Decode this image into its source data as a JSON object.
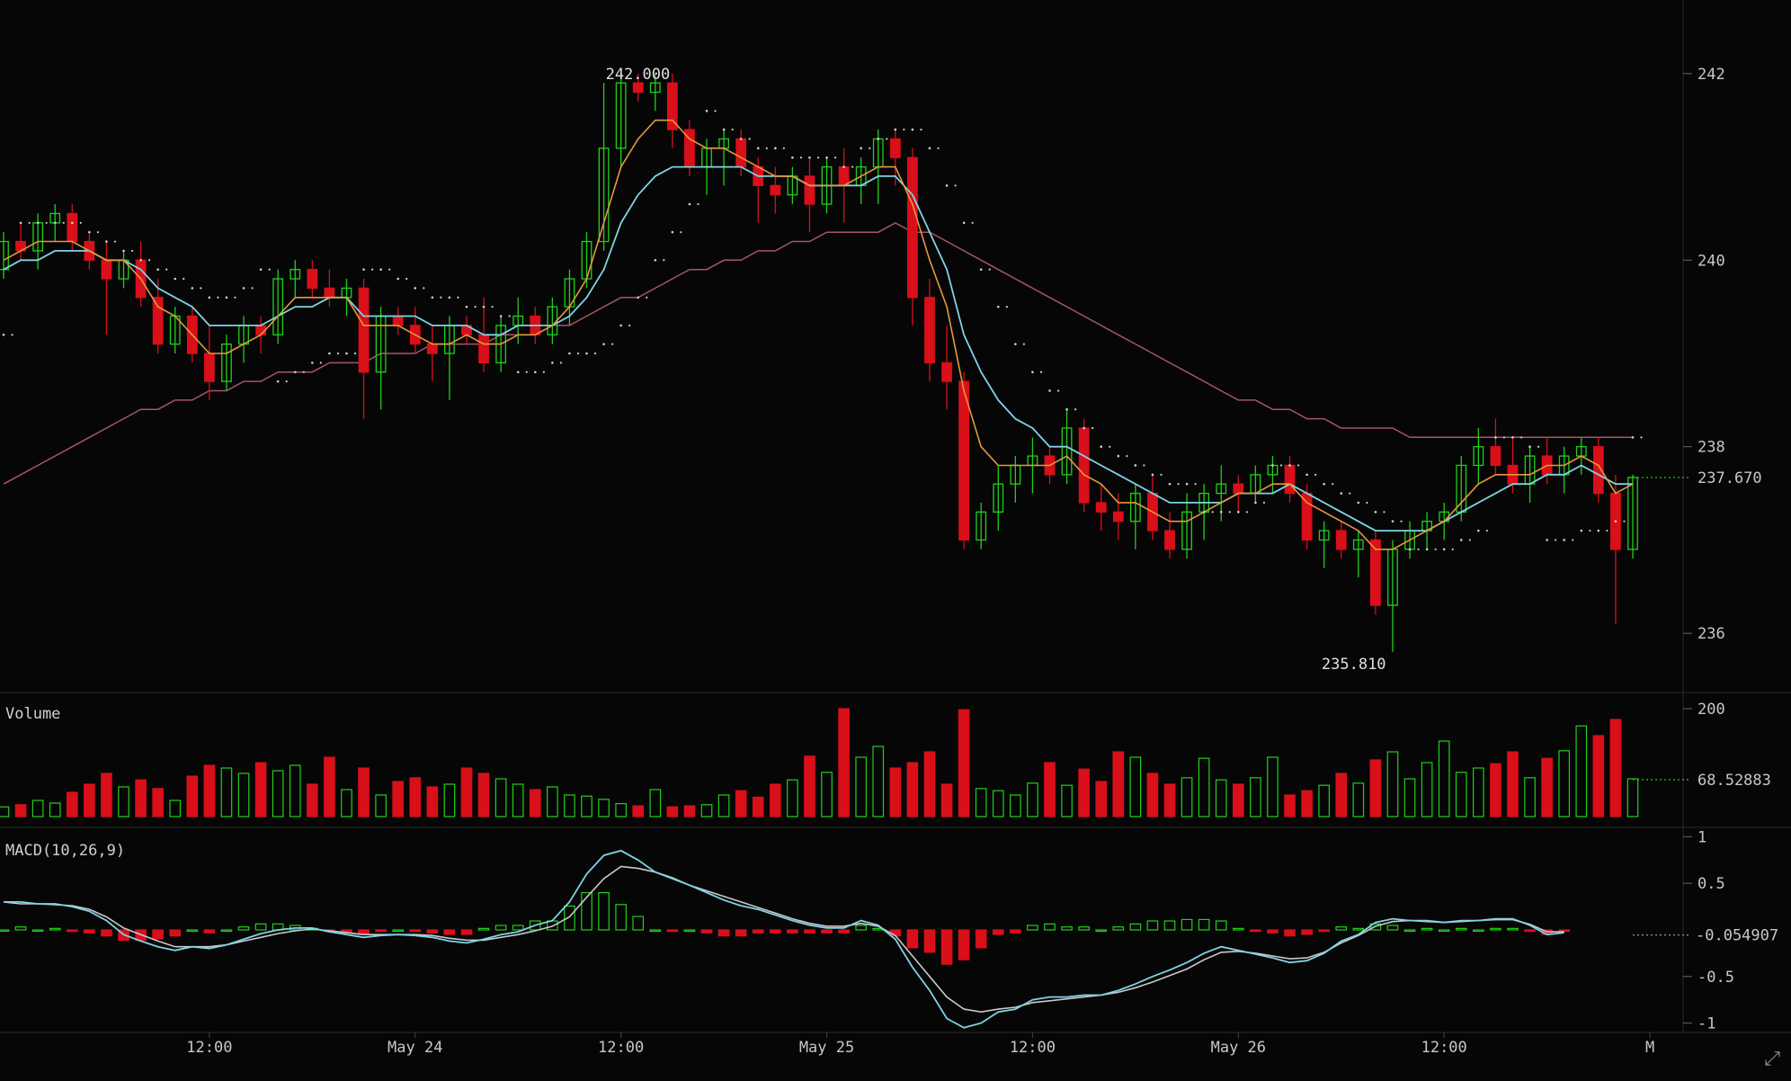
{
  "chart_data": {
    "type": "candlestick",
    "colors": {
      "up": "#1fd119",
      "down": "#d90f19",
      "ema_fast": "#e9973c",
      "ema_slow": "#7fd3e6",
      "ma_long": "#a8546a",
      "sar": "#cfcfcf",
      "macd_line": "#7fd3e6",
      "signal_line": "#c9c9c9",
      "axis_text": "#c8c8c8",
      "grid": "#1a1a1a"
    },
    "x_axis": {
      "labels": [
        "12:00",
        "May 24",
        "12:00",
        "May 25",
        "12:00",
        "May 26",
        "12:00",
        "M"
      ],
      "positions": [
        12,
        24,
        36,
        48,
        60,
        72,
        84,
        96
      ]
    },
    "price": {
      "ylim": [
        235.5,
        242.5
      ],
      "ticks": [
        242,
        240,
        238,
        236
      ],
      "last_label": "237.670",
      "high_label": "242.000",
      "low_label": "235.810",
      "candles": [
        [
          239.9,
          240.3,
          239.8,
          240.2
        ],
        [
          240.2,
          240.4,
          240.0,
          240.1
        ],
        [
          240.1,
          240.5,
          239.9,
          240.4
        ],
        [
          240.4,
          240.6,
          240.2,
          240.5
        ],
        [
          240.5,
          240.6,
          240.1,
          240.2
        ],
        [
          240.2,
          240.3,
          239.9,
          240.0
        ],
        [
          240.0,
          240.2,
          239.2,
          239.8
        ],
        [
          239.8,
          240.1,
          239.7,
          240.0
        ],
        [
          240.0,
          240.2,
          239.5,
          239.6
        ],
        [
          239.6,
          239.8,
          239.0,
          239.1
        ],
        [
          239.1,
          239.5,
          239.0,
          239.4
        ],
        [
          239.4,
          239.5,
          238.9,
          239.0
        ],
        [
          239.0,
          239.3,
          238.5,
          238.7
        ],
        [
          238.7,
          239.2,
          238.6,
          239.1
        ],
        [
          239.1,
          239.4,
          238.9,
          239.3
        ],
        [
          239.3,
          239.4,
          239.0,
          239.2
        ],
        [
          239.2,
          239.9,
          239.1,
          239.8
        ],
        [
          239.8,
          240.0,
          239.6,
          239.9
        ],
        [
          239.9,
          240.0,
          239.6,
          239.7
        ],
        [
          239.7,
          239.9,
          239.5,
          239.6
        ],
        [
          239.6,
          239.8,
          239.4,
          239.7
        ],
        [
          239.7,
          239.8,
          238.3,
          238.8
        ],
        [
          238.8,
          239.5,
          238.4,
          239.4
        ],
        [
          239.4,
          239.5,
          239.2,
          239.3
        ],
        [
          239.3,
          239.5,
          239.0,
          239.1
        ],
        [
          239.1,
          239.3,
          238.7,
          239.0
        ],
        [
          239.0,
          239.4,
          238.5,
          239.3
        ],
        [
          239.3,
          239.4,
          239.1,
          239.2
        ],
        [
          239.2,
          239.6,
          238.8,
          238.9
        ],
        [
          238.9,
          239.4,
          238.8,
          239.3
        ],
        [
          239.3,
          239.6,
          239.1,
          239.4
        ],
        [
          239.4,
          239.5,
          239.1,
          239.2
        ],
        [
          239.2,
          239.6,
          239.1,
          239.5
        ],
        [
          239.5,
          239.9,
          239.3,
          239.8
        ],
        [
          239.8,
          240.3,
          239.7,
          240.2
        ],
        [
          240.2,
          241.9,
          240.1,
          241.2
        ],
        [
          241.2,
          242.0,
          241.0,
          241.9
        ],
        [
          241.9,
          242.0,
          241.7,
          241.8
        ],
        [
          241.8,
          242.0,
          241.6,
          241.9
        ],
        [
          241.9,
          242.0,
          241.2,
          241.4
        ],
        [
          241.4,
          241.5,
          240.9,
          241.0
        ],
        [
          241.0,
          241.3,
          240.7,
          241.2
        ],
        [
          241.2,
          241.4,
          240.8,
          241.3
        ],
        [
          241.3,
          241.4,
          240.9,
          241.0
        ],
        [
          241.0,
          241.1,
          240.4,
          240.8
        ],
        [
          240.8,
          241.0,
          240.5,
          240.7
        ],
        [
          240.7,
          241.0,
          240.6,
          240.9
        ],
        [
          240.9,
          241.1,
          240.3,
          240.6
        ],
        [
          240.6,
          241.1,
          240.5,
          241.0
        ],
        [
          241.0,
          241.2,
          240.4,
          240.8
        ],
        [
          240.8,
          241.1,
          240.6,
          241.0
        ],
        [
          241.0,
          241.4,
          240.6,
          241.3
        ],
        [
          241.3,
          241.4,
          240.8,
          241.1
        ],
        [
          241.1,
          241.2,
          239.3,
          239.6
        ],
        [
          239.6,
          239.8,
          238.7,
          238.9
        ],
        [
          238.9,
          239.3,
          238.4,
          238.7
        ],
        [
          238.7,
          238.8,
          236.9,
          237.0
        ],
        [
          237.0,
          237.4,
          236.9,
          237.3
        ],
        [
          237.3,
          237.8,
          237.1,
          237.6
        ],
        [
          237.6,
          237.9,
          237.4,
          237.8
        ],
        [
          237.8,
          238.1,
          237.5,
          237.9
        ],
        [
          237.9,
          238.0,
          237.6,
          237.7
        ],
        [
          237.7,
          238.4,
          237.6,
          238.2
        ],
        [
          238.2,
          238.3,
          237.3,
          237.4
        ],
        [
          237.4,
          237.6,
          237.1,
          237.3
        ],
        [
          237.3,
          237.5,
          237.0,
          237.2
        ],
        [
          237.2,
          237.6,
          236.9,
          237.5
        ],
        [
          237.5,
          237.7,
          237.0,
          237.1
        ],
        [
          237.1,
          237.3,
          236.8,
          236.9
        ],
        [
          236.9,
          237.5,
          236.8,
          237.3
        ],
        [
          237.3,
          237.6,
          237.0,
          237.5
        ],
        [
          237.5,
          237.8,
          237.2,
          237.6
        ],
        [
          237.6,
          237.7,
          237.3,
          237.5
        ],
        [
          237.5,
          237.8,
          237.4,
          237.7
        ],
        [
          237.7,
          237.9,
          237.5,
          237.8
        ],
        [
          237.8,
          237.9,
          237.4,
          237.5
        ],
        [
          237.5,
          237.6,
          236.9,
          237.0
        ],
        [
          237.0,
          237.2,
          236.7,
          237.1
        ],
        [
          237.1,
          237.2,
          236.8,
          236.9
        ],
        [
          236.9,
          237.1,
          236.6,
          237.0
        ],
        [
          237.0,
          237.1,
          236.2,
          236.3
        ],
        [
          236.3,
          237.0,
          235.8,
          236.9
        ],
        [
          236.9,
          237.2,
          236.8,
          237.1
        ],
        [
          237.1,
          237.3,
          236.9,
          237.2
        ],
        [
          237.2,
          237.4,
          237.0,
          237.3
        ],
        [
          237.3,
          237.9,
          237.2,
          237.8
        ],
        [
          237.8,
          238.2,
          237.6,
          238.0
        ],
        [
          238.0,
          238.3,
          237.7,
          237.8
        ],
        [
          237.8,
          238.1,
          237.5,
          237.6
        ],
        [
          237.6,
          238.0,
          237.4,
          237.9
        ],
        [
          237.9,
          238.1,
          237.6,
          237.7
        ],
        [
          237.7,
          238.0,
          237.5,
          237.9
        ],
        [
          237.9,
          238.1,
          237.7,
          238.0
        ],
        [
          238.0,
          238.1,
          237.4,
          237.5
        ],
        [
          237.5,
          237.7,
          236.1,
          236.9
        ],
        [
          236.9,
          237.7,
          236.8,
          237.67
        ]
      ],
      "ema_fast": [
        240.0,
        240.1,
        240.2,
        240.2,
        240.2,
        240.1,
        240.0,
        240.0,
        239.8,
        239.5,
        239.4,
        239.2,
        239.0,
        239.0,
        239.1,
        239.2,
        239.4,
        239.6,
        239.6,
        239.6,
        239.6,
        239.3,
        239.3,
        239.3,
        239.2,
        239.1,
        239.1,
        239.2,
        239.1,
        239.1,
        239.2,
        239.2,
        239.3,
        239.5,
        239.8,
        240.4,
        241.0,
        241.3,
        241.5,
        241.5,
        241.3,
        241.2,
        241.2,
        241.1,
        241.0,
        240.9,
        240.9,
        240.8,
        240.8,
        240.8,
        240.9,
        241.0,
        241.0,
        240.6,
        240.0,
        239.5,
        238.6,
        238.0,
        237.8,
        237.8,
        237.8,
        237.8,
        237.9,
        237.7,
        237.6,
        237.4,
        237.4,
        237.3,
        237.2,
        237.2,
        237.3,
        237.4,
        237.5,
        237.5,
        237.6,
        237.6,
        237.4,
        237.3,
        237.2,
        237.1,
        236.9,
        236.9,
        237.0,
        237.1,
        237.2,
        237.4,
        237.6,
        237.7,
        237.7,
        237.7,
        237.8,
        237.8,
        237.9,
        237.8,
        237.5,
        237.6
      ],
      "ema_slow": [
        239.9,
        240.0,
        240.0,
        240.1,
        240.1,
        240.1,
        240.0,
        240.0,
        239.9,
        239.7,
        239.6,
        239.5,
        239.3,
        239.3,
        239.3,
        239.3,
        239.4,
        239.5,
        239.5,
        239.6,
        239.6,
        239.4,
        239.4,
        239.4,
        239.4,
        239.3,
        239.3,
        239.3,
        239.2,
        239.2,
        239.3,
        239.3,
        239.3,
        239.4,
        239.6,
        239.9,
        240.4,
        240.7,
        240.9,
        241.0,
        241.0,
        241.0,
        241.0,
        241.0,
        240.9,
        240.9,
        240.9,
        240.8,
        240.8,
        240.8,
        240.8,
        240.9,
        240.9,
        240.7,
        240.3,
        239.9,
        239.2,
        238.8,
        238.5,
        238.3,
        238.2,
        238.0,
        238.0,
        237.9,
        237.8,
        237.7,
        237.6,
        237.5,
        237.4,
        237.4,
        237.4,
        237.4,
        237.5,
        237.5,
        237.5,
        237.6,
        237.5,
        237.4,
        237.3,
        237.2,
        237.1,
        237.1,
        237.1,
        237.1,
        237.2,
        237.3,
        237.4,
        237.5,
        237.6,
        237.6,
        237.7,
        237.7,
        237.8,
        237.7,
        237.6,
        237.6
      ],
      "ma_long": [
        237.6,
        237.7,
        237.8,
        237.9,
        238.0,
        238.1,
        238.2,
        238.3,
        238.4,
        238.4,
        238.5,
        238.5,
        238.6,
        238.6,
        238.7,
        238.7,
        238.8,
        238.8,
        238.8,
        238.9,
        238.9,
        238.9,
        239.0,
        239.0,
        239.0,
        239.1,
        239.1,
        239.1,
        239.1,
        239.2,
        239.2,
        239.2,
        239.3,
        239.3,
        239.4,
        239.5,
        239.6,
        239.6,
        239.7,
        239.8,
        239.9,
        239.9,
        240.0,
        240.0,
        240.1,
        240.1,
        240.2,
        240.2,
        240.3,
        240.3,
        240.3,
        240.3,
        240.4,
        240.3,
        240.3,
        240.2,
        240.1,
        240.0,
        239.9,
        239.8,
        239.7,
        239.6,
        239.5,
        239.4,
        239.3,
        239.2,
        239.1,
        239.0,
        238.9,
        238.8,
        238.7,
        238.6,
        238.5,
        238.5,
        238.4,
        238.4,
        238.3,
        238.3,
        238.2,
        238.2,
        238.2,
        238.2,
        238.1,
        238.1,
        238.1,
        238.1,
        238.1,
        238.1,
        238.1,
        238.1,
        238.1,
        238.1,
        238.1,
        238.1,
        238.1,
        238.1
      ],
      "sar": [
        239.2,
        240.4,
        240.4,
        240.4,
        240.4,
        240.3,
        240.2,
        240.1,
        240.0,
        239.9,
        239.8,
        239.7,
        239.6,
        239.6,
        239.7,
        239.9,
        238.7,
        238.8,
        238.9,
        239.0,
        239.0,
        239.9,
        239.9,
        239.8,
        239.7,
        239.6,
        239.6,
        239.5,
        239.5,
        239.4,
        238.8,
        238.8,
        238.9,
        239.0,
        239.0,
        239.1,
        239.3,
        239.6,
        240.0,
        240.3,
        240.6,
        241.6,
        241.4,
        241.3,
        241.2,
        241.2,
        241.1,
        241.1,
        241.1,
        241.0,
        241.2,
        241.3,
        241.4,
        241.4,
        241.2,
        240.8,
        240.4,
        239.9,
        239.5,
        239.1,
        238.8,
        238.6,
        238.4,
        238.2,
        238.0,
        237.9,
        237.8,
        237.7,
        237.6,
        237.6,
        237.3,
        237.3,
        237.3,
        237.4,
        237.8,
        237.8,
        237.7,
        237.6,
        237.5,
        237.4,
        237.3,
        237.2,
        236.9,
        236.9,
        236.9,
        237.0,
        237.1,
        238.1,
        238.1,
        238.0,
        237.0,
        237.0,
        237.1,
        237.1,
        237.2,
        238.1
      ]
    },
    "volume": {
      "label": "Volume",
      "ylim": [
        0,
        230
      ],
      "ticks": [
        200
      ],
      "last_label": "68.52883",
      "values": [
        18,
        22,
        30,
        25,
        45,
        60,
        80,
        55,
        68,
        52,
        30,
        75,
        95,
        90,
        80,
        100,
        85,
        95,
        60,
        110,
        50,
        90,
        40,
        65,
        72,
        55,
        60,
        90,
        80,
        70,
        60,
        50,
        55,
        40,
        38,
        32,
        24,
        20,
        50,
        18,
        20,
        22,
        40,
        48,
        36,
        60,
        68,
        112,
        82,
        200,
        110,
        130,
        90,
        100,
        120,
        60,
        198,
        52,
        48,
        40,
        62,
        100,
        58,
        88,
        65,
        120,
        110,
        80,
        60,
        72,
        108,
        68,
        60,
        72,
        110,
        40,
        48,
        58,
        80,
        62,
        105,
        120,
        70,
        100,
        140,
        82,
        90,
        98,
        120,
        72,
        108,
        122,
        168,
        150,
        180,
        70
      ]
    },
    "macd": {
      "label": "MACD(10,26,9)",
      "ylim": [
        -1.1,
        1.1
      ],
      "ticks": [
        1,
        0.5,
        -0.5,
        -1
      ],
      "tick_labels": [
        "1",
        "0.5",
        "-0.5",
        "-1"
      ],
      "zero_label": "-0.054907",
      "macd_line": [
        0.3,
        0.3,
        0.28,
        0.28,
        0.25,
        0.2,
        0.1,
        -0.05,
        -0.12,
        -0.18,
        -0.22,
        -0.18,
        -0.2,
        -0.16,
        -0.1,
        -0.04,
        0.0,
        0.02,
        0.02,
        -0.02,
        -0.05,
        -0.08,
        -0.06,
        -0.05,
        -0.06,
        -0.08,
        -0.12,
        -0.14,
        -0.1,
        -0.05,
        -0.02,
        0.05,
        0.1,
        0.3,
        0.6,
        0.8,
        0.85,
        0.75,
        0.62,
        0.55,
        0.48,
        0.4,
        0.32,
        0.26,
        0.22,
        0.16,
        0.1,
        0.05,
        0.02,
        0.02,
        0.1,
        0.05,
        -0.1,
        -0.4,
        -0.65,
        -0.95,
        -1.05,
        -1.0,
        -0.88,
        -0.85,
        -0.75,
        -0.72,
        -0.72,
        -0.7,
        -0.7,
        -0.65,
        -0.58,
        -0.5,
        -0.43,
        -0.35,
        -0.25,
        -0.18,
        -0.22,
        -0.26,
        -0.3,
        -0.35,
        -0.33,
        -0.25,
        -0.12,
        -0.05,
        0.08,
        0.12,
        0.1,
        0.1,
        0.08,
        0.1,
        0.1,
        0.12,
        0.12,
        0.05,
        -0.05,
        -0.03
      ],
      "signal_line": [
        0.3,
        0.28,
        0.28,
        0.27,
        0.26,
        0.22,
        0.14,
        0.02,
        -0.05,
        -0.12,
        -0.18,
        -0.18,
        -0.18,
        -0.16,
        -0.12,
        -0.08,
        -0.04,
        -0.01,
        0.01,
        -0.01,
        -0.03,
        -0.05,
        -0.05,
        -0.05,
        -0.05,
        -0.06,
        -0.09,
        -0.11,
        -0.11,
        -0.08,
        -0.05,
        -0.01,
        0.04,
        0.14,
        0.35,
        0.55,
        0.68,
        0.66,
        0.62,
        0.56,
        0.48,
        0.42,
        0.36,
        0.3,
        0.24,
        0.18,
        0.12,
        0.07,
        0.04,
        0.04,
        0.07,
        0.04,
        -0.06,
        -0.28,
        -0.5,
        -0.72,
        -0.85,
        -0.88,
        -0.85,
        -0.83,
        -0.78,
        -0.76,
        -0.74,
        -0.72,
        -0.7,
        -0.67,
        -0.62,
        -0.56,
        -0.49,
        -0.42,
        -0.32,
        -0.24,
        -0.23,
        -0.25,
        -0.28,
        -0.31,
        -0.3,
        -0.24,
        -0.14,
        -0.06,
        0.04,
        0.09,
        0.1,
        0.09,
        0.08,
        0.09,
        0.1,
        0.11,
        0.11,
        0.06,
        -0.02,
        -0.02
      ]
    }
  },
  "ui": {
    "expand_icon": "expand-icon"
  }
}
